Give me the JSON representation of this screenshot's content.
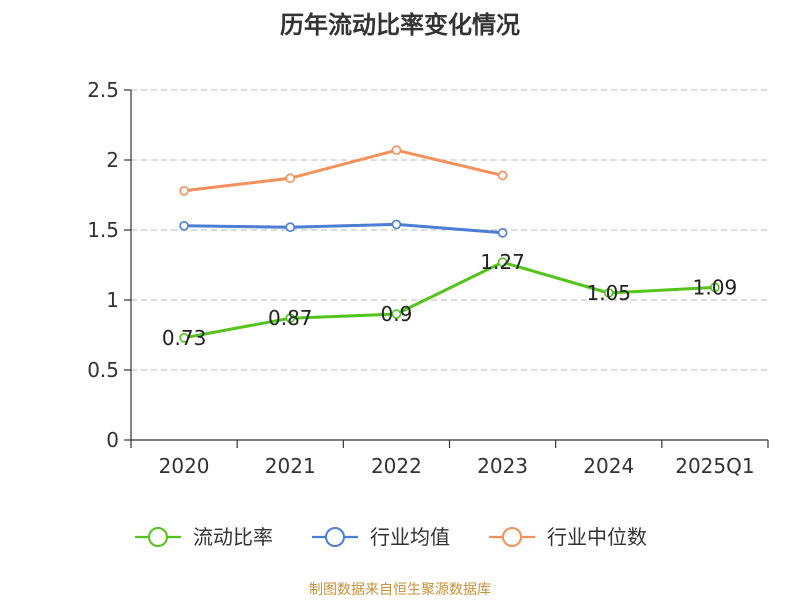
{
  "chart_data": {
    "type": "line",
    "title": "历年流动比率变化情况",
    "categories": [
      "2020",
      "2021",
      "2022",
      "2023",
      "2024",
      "2025Q1"
    ],
    "ylim": [
      0,
      2.5
    ],
    "yticks": [
      "0",
      "0.5",
      "1",
      "1.5",
      "2",
      "2.5"
    ],
    "grid": true,
    "legend_position": "bottom",
    "series": [
      {
        "name": "流动比率",
        "color": "#52c41a",
        "values": [
          0.73,
          0.87,
          0.9,
          1.27,
          1.05,
          1.09
        ],
        "labels": [
          "0.73",
          "0.87",
          "0.9",
          "1.27",
          "1.05",
          "1.09"
        ]
      },
      {
        "name": "行业均值",
        "color": "#4a7fd4",
        "values": [
          1.53,
          1.52,
          1.54,
          1.48,
          null,
          null
        ]
      },
      {
        "name": "行业中位数",
        "color": "#f5905a",
        "values": [
          1.78,
          1.87,
          2.07,
          1.89,
          null,
          null
        ]
      }
    ]
  },
  "source": "制图数据来自恒生聚源数据库"
}
